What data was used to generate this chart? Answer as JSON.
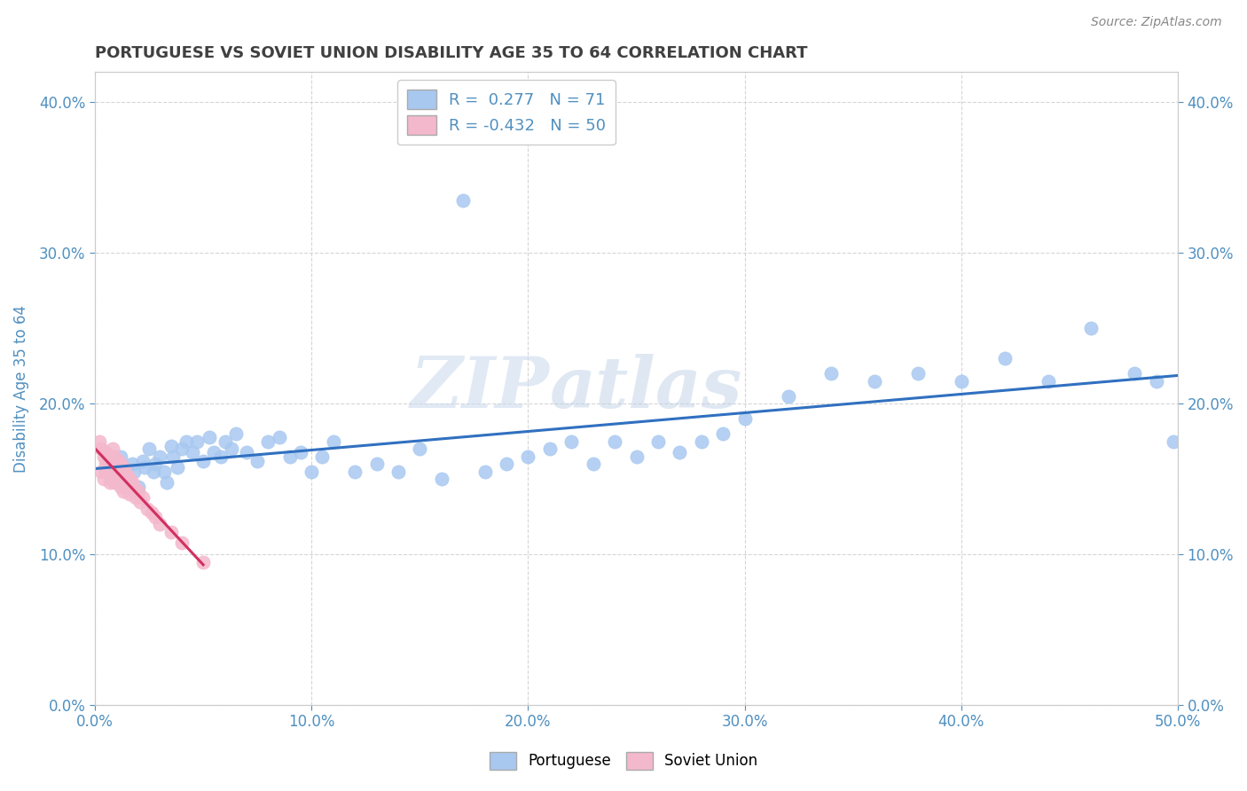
{
  "title": "PORTUGUESE VS SOVIET UNION DISABILITY AGE 35 TO 64 CORRELATION CHART",
  "source": "Source: ZipAtlas.com",
  "xlim": [
    0.0,
    0.5
  ],
  "ylim": [
    0.0,
    0.42
  ],
  "ylabel": "Disability Age 35 to 64",
  "portuguese_R": 0.277,
  "portuguese_N": 71,
  "soviet_R": -0.432,
  "soviet_N": 50,
  "portuguese_color": "#a8c8f0",
  "soviet_color": "#f4b8cc",
  "portuguese_line_color": "#3070c0",
  "soviet_line_color": "#d03060",
  "portuguese_x": [
    0.005,
    0.008,
    0.01,
    0.012,
    0.013,
    0.015,
    0.016,
    0.017,
    0.018,
    0.02,
    0.022,
    0.023,
    0.025,
    0.027,
    0.028,
    0.03,
    0.032,
    0.033,
    0.035,
    0.036,
    0.038,
    0.04,
    0.042,
    0.045,
    0.047,
    0.05,
    0.053,
    0.055,
    0.058,
    0.06,
    0.063,
    0.065,
    0.07,
    0.075,
    0.08,
    0.085,
    0.09,
    0.095,
    0.1,
    0.105,
    0.11,
    0.12,
    0.13,
    0.14,
    0.15,
    0.16,
    0.17,
    0.18,
    0.19,
    0.2,
    0.21,
    0.22,
    0.23,
    0.24,
    0.25,
    0.26,
    0.27,
    0.28,
    0.29,
    0.3,
    0.32,
    0.34,
    0.36,
    0.38,
    0.4,
    0.42,
    0.44,
    0.46,
    0.48,
    0.49,
    0.498
  ],
  "portuguese_y": [
    0.155,
    0.15,
    0.16,
    0.165,
    0.155,
    0.15,
    0.148,
    0.16,
    0.155,
    0.145,
    0.162,
    0.158,
    0.17,
    0.155,
    0.16,
    0.165,
    0.155,
    0.148,
    0.172,
    0.165,
    0.158,
    0.17,
    0.175,
    0.168,
    0.175,
    0.162,
    0.178,
    0.168,
    0.165,
    0.175,
    0.17,
    0.18,
    0.168,
    0.162,
    0.175,
    0.178,
    0.165,
    0.168,
    0.155,
    0.165,
    0.175,
    0.155,
    0.16,
    0.155,
    0.17,
    0.15,
    0.335,
    0.155,
    0.16,
    0.165,
    0.17,
    0.175,
    0.16,
    0.175,
    0.165,
    0.175,
    0.168,
    0.175,
    0.18,
    0.19,
    0.205,
    0.22,
    0.215,
    0.22,
    0.215,
    0.23,
    0.215,
    0.25,
    0.22,
    0.215,
    0.175
  ],
  "soviet_x": [
    0.002,
    0.003,
    0.003,
    0.004,
    0.004,
    0.005,
    0.005,
    0.005,
    0.006,
    0.006,
    0.007,
    0.007,
    0.007,
    0.008,
    0.008,
    0.008,
    0.009,
    0.009,
    0.009,
    0.01,
    0.01,
    0.01,
    0.01,
    0.011,
    0.011,
    0.012,
    0.012,
    0.012,
    0.013,
    0.013,
    0.013,
    0.014,
    0.014,
    0.015,
    0.015,
    0.016,
    0.016,
    0.017,
    0.018,
    0.019,
    0.02,
    0.021,
    0.022,
    0.024,
    0.026,
    0.028,
    0.03,
    0.035,
    0.04,
    0.05
  ],
  "soviet_y": [
    0.175,
    0.17,
    0.155,
    0.165,
    0.15,
    0.168,
    0.16,
    0.155,
    0.162,
    0.158,
    0.165,
    0.155,
    0.148,
    0.17,
    0.162,
    0.155,
    0.165,
    0.158,
    0.148,
    0.162,
    0.155,
    0.148,
    0.158,
    0.162,
    0.155,
    0.16,
    0.15,
    0.145,
    0.158,
    0.15,
    0.142,
    0.155,
    0.148,
    0.152,
    0.145,
    0.15,
    0.14,
    0.148,
    0.145,
    0.138,
    0.142,
    0.135,
    0.138,
    0.13,
    0.128,
    0.125,
    0.12,
    0.115,
    0.108,
    0.095
  ],
  "watermark_zip": "ZIP",
  "watermark_atlas": "atlas",
  "grid_color": "#cccccc",
  "background_color": "#ffffff",
  "title_color": "#404040",
  "axis_label_color": "#5090c0",
  "tick_color": "#5090c0",
  "legend_R_color": "#5090c0",
  "legend_text_color": "#333333"
}
